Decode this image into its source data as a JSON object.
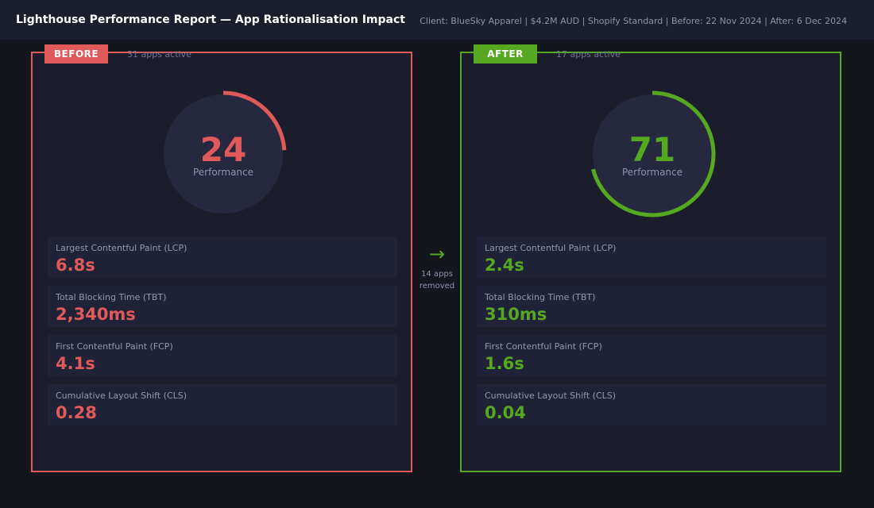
{
  "header": {
    "title": "Lighthouse Performance Report — App Rationalisation Impact",
    "meta": "Client: BlueSky Apparel  |  $4.2M AUD  |  Shopify Standard  |  Before: 22 Nov 2024  |  After: 6 Dec 2024"
  },
  "colors": {
    "before_accent": "#e05a5a",
    "after_accent": "#55a820",
    "gauge_track": "#262840"
  },
  "before": {
    "badge": "BEFORE",
    "apps_active": "31 apps active",
    "score": 24,
    "score_label": "Performance",
    "metrics": [
      {
        "label": "Largest Contentful Paint (LCP)",
        "value": "6.8s"
      },
      {
        "label": "Total Blocking Time (TBT)",
        "value": "2,340ms"
      },
      {
        "label": "First Contentful Paint (FCP)",
        "value": "4.1s"
      },
      {
        "label": "Cumulative Layout Shift (CLS)",
        "value": "0.28"
      }
    ]
  },
  "after": {
    "badge": "AFTER",
    "apps_active": "17 apps active",
    "score": 71,
    "score_label": "Performance",
    "metrics": [
      {
        "label": "Largest Contentful Paint (LCP)",
        "value": "2.4s"
      },
      {
        "label": "Total Blocking Time (TBT)",
        "value": "310ms"
      },
      {
        "label": "First Contentful Paint (FCP)",
        "value": "1.6s"
      },
      {
        "label": "Cumulative Layout Shift (CLS)",
        "value": "0.04"
      }
    ]
  },
  "transition": {
    "arrow_icon": "arrow-right-icon",
    "arrow_glyph": "→",
    "apps_removed_line1": "14 apps",
    "apps_removed_line2": "removed"
  }
}
